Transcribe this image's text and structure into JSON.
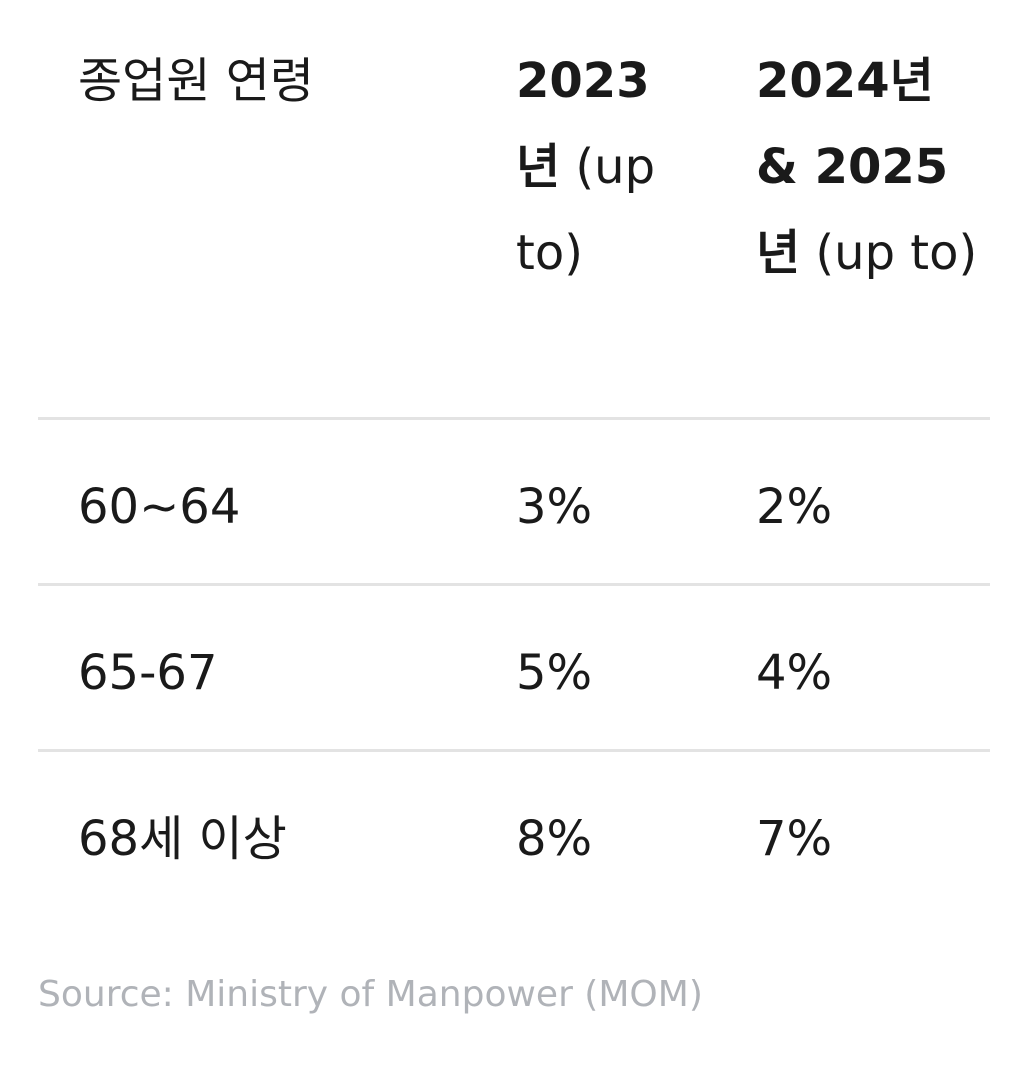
{
  "table": {
    "headers": {
      "age": "종업원 연령",
      "y2023_main": "2023\n년",
      "y2023_sub": " (up to)",
      "y2024_main": "2024년\n& 2025\n년",
      "y2024_sub": " (up to)"
    },
    "rows": [
      {
        "age": "60~64",
        "y2023": "3%",
        "y2024": "2%"
      },
      {
        "age": "65-67",
        "y2023": "5%",
        "y2024": "4%"
      },
      {
        "age": "68세 이상",
        "y2023": "8%",
        "y2024": "7%"
      }
    ]
  },
  "source": "Source: Ministry of Manpower (MOM)",
  "colors": {
    "text": "#1a1a1a",
    "divider": "#e3e3e3",
    "source_text": "#b0b3b8"
  }
}
